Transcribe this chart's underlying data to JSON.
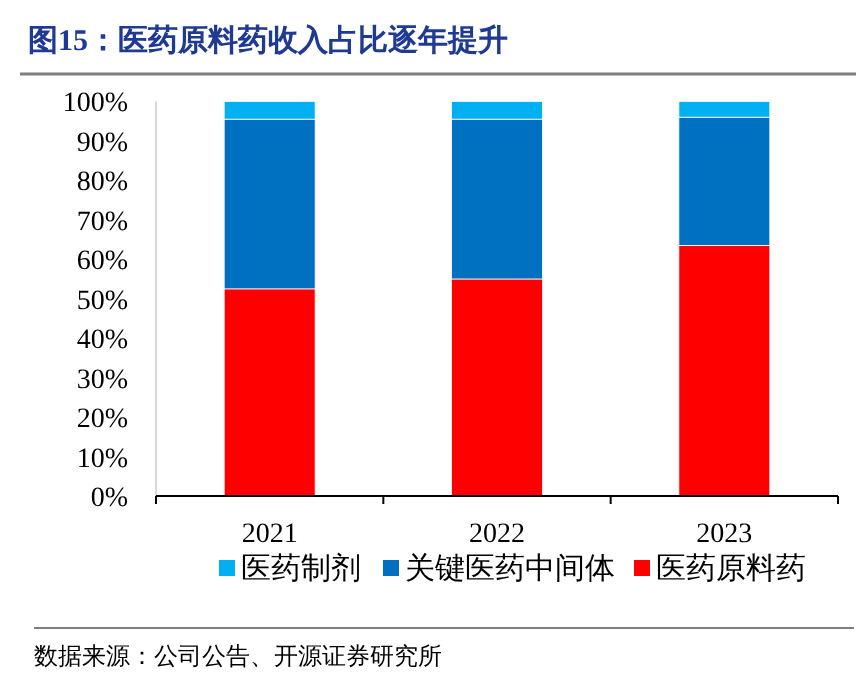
{
  "chart_data": {
    "type": "bar",
    "stacked": true,
    "title": "图15：医药原料药收入占比逐年提升",
    "categories": [
      "2021",
      "2022",
      "2023"
    ],
    "series": [
      {
        "name": "医药原料药",
        "color": "#ff0000",
        "values": [
          52.5,
          55,
          63.5
        ]
      },
      {
        "name": "关键医药中间体",
        "color": "#0070c0",
        "values": [
          43,
          40.5,
          32.5
        ]
      },
      {
        "name": "医药制剂",
        "color": "#00b0f0",
        "values": [
          4.5,
          4.5,
          4
        ]
      }
    ],
    "ylim": [
      0,
      100
    ],
    "yticks": [
      {
        "value": 0,
        "label": "0%"
      },
      {
        "value": 10,
        "label": "10%"
      },
      {
        "value": 20,
        "label": "20%"
      },
      {
        "value": 30,
        "label": "30%"
      },
      {
        "value": 40,
        "label": "40%"
      },
      {
        "value": 50,
        "label": "50%"
      },
      {
        "value": 60,
        "label": "60%"
      },
      {
        "value": 70,
        "label": "70%"
      },
      {
        "value": 80,
        "label": "80%"
      },
      {
        "value": 90,
        "label": "90%"
      },
      {
        "value": 100,
        "label": "100%"
      }
    ],
    "legend": "bottom",
    "annotations": [
      "数据来源：公司公告、开源证券研究所"
    ]
  }
}
